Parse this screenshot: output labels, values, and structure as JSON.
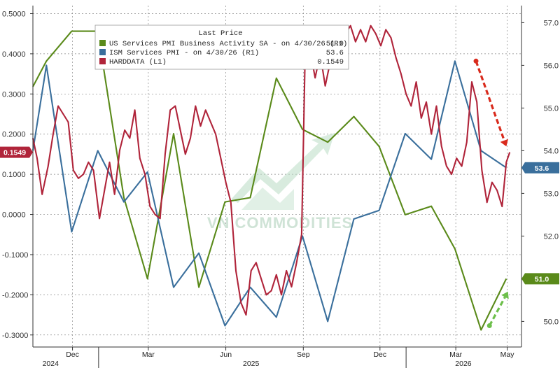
{
  "chart_data": {
    "type": "line",
    "legend": {
      "title": "Last Price",
      "placement": "top-center",
      "entries": [
        {
          "label": "US Services PMI Business Activity SA -  on 4/30/26  (R1)",
          "value": "51.0",
          "color": "#5a8a1a"
        },
        {
          "label": "ISM Services PMI -  on 4/30/26  (R1)",
          "value": "53.6",
          "color": "#3a6f9c"
        },
        {
          "label": "HARDDATA  (L1)",
          "value": "0.1549",
          "color": "#b0243a"
        }
      ]
    },
    "left_axis": {
      "ylim": [
        -0.33,
        0.52
      ],
      "ticks": [
        0.5,
        0.4,
        0.3,
        0.2,
        0.1,
        0.0,
        -0.1,
        -0.2,
        -0.3
      ],
      "tick_labels": [
        "0.5000",
        "0.4000",
        "0.3000",
        "0.2000",
        "0.1000",
        "0.0000",
        "-0.1000",
        "-0.2000",
        "-0.3000"
      ]
    },
    "right_axis": {
      "ylim": [
        49.4,
        57.4
      ],
      "ticks": [
        57.0,
        56.0,
        55.0,
        54.0,
        53.0,
        52.0,
        51.0,
        50.0
      ],
      "tick_labels": [
        "57.0",
        "56.0",
        "55.0",
        "54.0",
        "53.0",
        "52.0",
        "51.0",
        "50.0"
      ]
    },
    "x_axis": {
      "xlim": [
        "2024-10-15",
        "2026-05-18"
      ],
      "month_ticks": [
        {
          "label": "Dec",
          "date": "2024-12-01"
        },
        {
          "label": "Mar",
          "date": "2025-03-01"
        },
        {
          "label": "Jun",
          "date": "2025-06-01"
        },
        {
          "label": "Sep",
          "date": "2025-09-01"
        },
        {
          "label": "Dec",
          "date": "2025-12-01"
        },
        {
          "label": "Mar",
          "date": "2026-03-01"
        },
        {
          "label": "May",
          "date": "2026-05-01"
        }
      ],
      "year_labels": [
        {
          "label": "2024",
          "date": "2024-11-05"
        },
        {
          "label": "2025",
          "date": "2025-07-01"
        },
        {
          "label": "2026",
          "date": "2026-03-10"
        }
      ]
    },
    "grid": true,
    "series": [
      {
        "name": "US Services PMI Business Activity SA",
        "axis": "right",
        "color": "#5a8a1a",
        "points": [
          [
            "2024-10-15",
            55.5
          ],
          [
            "2024-10-31",
            56.1
          ],
          [
            "2024-11-30",
            56.8
          ],
          [
            "2024-12-31",
            56.8
          ],
          [
            "2025-01-31",
            52.9
          ],
          [
            "2025-02-28",
            51.0
          ],
          [
            "2025-03-31",
            54.4
          ],
          [
            "2025-04-30",
            50.8
          ],
          [
            "2025-05-31",
            52.8
          ],
          [
            "2025-06-30",
            52.9
          ],
          [
            "2025-07-31",
            55.7
          ],
          [
            "2025-08-31",
            54.5
          ],
          [
            "2025-09-30",
            54.2
          ],
          [
            "2025-10-31",
            54.8
          ],
          [
            "2025-11-30",
            54.1
          ],
          [
            "2025-12-31",
            52.5
          ],
          [
            "2026-01-31",
            52.7
          ],
          [
            "2026-02-28",
            51.7
          ],
          [
            "2026-03-31",
            49.8
          ],
          [
            "2026-04-30",
            51.0
          ]
        ]
      },
      {
        "name": "ISM Services PMI",
        "axis": "right",
        "color": "#3a6f9c",
        "points": [
          [
            "2024-10-15",
            54.0
          ],
          [
            "2024-10-31",
            56.0
          ],
          [
            "2024-11-30",
            52.1
          ],
          [
            "2024-12-31",
            54.0
          ],
          [
            "2025-01-31",
            52.8
          ],
          [
            "2025-02-28",
            53.5
          ],
          [
            "2025-03-31",
            50.8
          ],
          [
            "2025-04-30",
            51.6
          ],
          [
            "2025-05-31",
            49.9
          ],
          [
            "2025-06-30",
            50.8
          ],
          [
            "2025-07-31",
            50.1
          ],
          [
            "2025-08-31",
            52.0
          ],
          [
            "2025-09-30",
            50.0
          ],
          [
            "2025-10-31",
            52.4
          ],
          [
            "2025-11-30",
            52.6
          ],
          [
            "2025-12-31",
            54.4
          ],
          [
            "2026-01-31",
            53.8
          ],
          [
            "2026-02-28",
            56.1
          ],
          [
            "2026-03-31",
            54.0
          ],
          [
            "2026-04-30",
            53.6
          ]
        ]
      },
      {
        "name": "HARDDATA",
        "axis": "left",
        "color": "#b0243a",
        "points": [
          [
            "2024-10-15",
            0.19
          ],
          [
            "2024-10-20",
            0.14
          ],
          [
            "2024-10-26",
            0.05
          ],
          [
            "2024-11-02",
            0.12
          ],
          [
            "2024-11-08",
            0.2
          ],
          [
            "2024-11-14",
            0.27
          ],
          [
            "2024-11-20",
            0.25
          ],
          [
            "2024-11-26",
            0.23
          ],
          [
            "2024-12-02",
            0.11
          ],
          [
            "2024-12-08",
            0.09
          ],
          [
            "2024-12-14",
            0.1
          ],
          [
            "2024-12-20",
            0.13
          ],
          [
            "2024-12-26",
            0.11
          ],
          [
            "2025-01-02",
            -0.01
          ],
          [
            "2025-01-08",
            0.06
          ],
          [
            "2025-01-14",
            0.13
          ],
          [
            "2025-01-20",
            0.05
          ],
          [
            "2025-01-26",
            0.16
          ],
          [
            "2025-02-01",
            0.21
          ],
          [
            "2025-02-07",
            0.19
          ],
          [
            "2025-02-13",
            0.26
          ],
          [
            "2025-02-19",
            0.14
          ],
          [
            "2025-02-25",
            0.1
          ],
          [
            "2025-03-03",
            0.02
          ],
          [
            "2025-03-09",
            0.0
          ],
          [
            "2025-03-15",
            -0.01
          ],
          [
            "2025-03-21",
            0.15
          ],
          [
            "2025-03-27",
            0.26
          ],
          [
            "2025-04-02",
            0.27
          ],
          [
            "2025-04-08",
            0.21
          ],
          [
            "2025-04-14",
            0.15
          ],
          [
            "2025-04-20",
            0.19
          ],
          [
            "2025-04-26",
            0.27
          ],
          [
            "2025-05-02",
            0.22
          ],
          [
            "2025-05-08",
            0.26
          ],
          [
            "2025-05-14",
            0.23
          ],
          [
            "2025-05-20",
            0.2
          ],
          [
            "2025-05-26",
            0.14
          ],
          [
            "2025-06-01",
            0.08
          ],
          [
            "2025-06-07",
            0.03
          ],
          [
            "2025-06-13",
            -0.14
          ],
          [
            "2025-06-19",
            -0.22
          ],
          [
            "2025-06-25",
            -0.25
          ],
          [
            "2025-07-01",
            -0.14
          ],
          [
            "2025-07-07",
            -0.12
          ],
          [
            "2025-07-13",
            -0.16
          ],
          [
            "2025-07-19",
            -0.2
          ],
          [
            "2025-07-25",
            -0.19
          ],
          [
            "2025-07-31",
            -0.15
          ],
          [
            "2025-08-06",
            -0.2
          ],
          [
            "2025-08-12",
            -0.14
          ],
          [
            "2025-08-18",
            -0.18
          ],
          [
            "2025-08-24",
            -0.12
          ],
          [
            "2025-08-30",
            -0.05
          ],
          [
            "2025-09-03",
            0.38
          ],
          [
            "2025-09-09",
            0.41
          ],
          [
            "2025-09-15",
            0.34
          ],
          [
            "2025-09-21",
            0.4
          ],
          [
            "2025-09-27",
            0.32
          ],
          [
            "2025-10-03",
            0.38
          ],
          [
            "2025-10-09",
            0.46
          ],
          [
            "2025-10-15",
            0.4
          ],
          [
            "2025-10-21",
            0.45
          ],
          [
            "2025-10-27",
            0.47
          ],
          [
            "2025-11-02",
            0.43
          ],
          [
            "2025-11-08",
            0.46
          ],
          [
            "2025-11-14",
            0.43
          ],
          [
            "2025-11-20",
            0.47
          ],
          [
            "2025-11-26",
            0.45
          ],
          [
            "2025-12-02",
            0.42
          ],
          [
            "2025-12-08",
            0.46
          ],
          [
            "2025-12-14",
            0.44
          ],
          [
            "2025-12-20",
            0.39
          ],
          [
            "2025-12-26",
            0.35
          ],
          [
            "2026-01-01",
            0.3
          ],
          [
            "2026-01-07",
            0.27
          ],
          [
            "2026-01-13",
            0.33
          ],
          [
            "2026-01-19",
            0.24
          ],
          [
            "2026-01-25",
            0.28
          ],
          [
            "2026-01-31",
            0.2
          ],
          [
            "2026-02-06",
            0.27
          ],
          [
            "2026-02-12",
            0.17
          ],
          [
            "2026-02-18",
            0.12
          ],
          [
            "2026-02-24",
            0.1
          ],
          [
            "2026-03-02",
            0.14
          ],
          [
            "2026-03-08",
            0.12
          ],
          [
            "2026-03-14",
            0.18
          ],
          [
            "2026-03-20",
            0.33
          ],
          [
            "2026-03-26",
            0.28
          ],
          [
            "2026-04-01",
            0.11
          ],
          [
            "2026-04-07",
            0.03
          ],
          [
            "2026-04-13",
            0.08
          ],
          [
            "2026-04-19",
            0.06
          ],
          [
            "2026-04-25",
            0.02
          ],
          [
            "2026-04-30",
            0.13
          ],
          [
            "2026-05-04",
            0.1549
          ]
        ]
      }
    ],
    "value_tags": [
      {
        "text": "0.1549",
        "axis": "left",
        "value": 0.1549,
        "color": "#b0243a"
      },
      {
        "text": "53.6",
        "axis": "right",
        "value": 53.6,
        "color": "#3a6f9c"
      },
      {
        "text": "51.0",
        "axis": "right",
        "value": 51.0,
        "color": "#5a8a1a"
      }
    ],
    "annotations": [
      {
        "kind": "dashed-arrow",
        "color": "#d92a1c",
        "from": [
          "2026-03-25",
          56.1
        ],
        "to": [
          "2026-04-30",
          54.1
        ]
      },
      {
        "kind": "dashed-arrow",
        "color": "#6dbf4b",
        "from": [
          "2026-04-10",
          49.9
        ],
        "to": [
          "2026-05-02",
          50.7
        ]
      }
    ],
    "watermark": "VN COMMODITIES"
  }
}
